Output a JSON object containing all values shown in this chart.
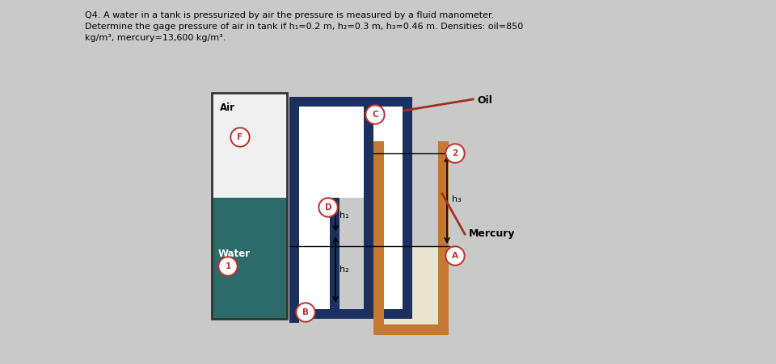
{
  "title_line1": "Q4. A water in a tank is pressurized by air the pressure is measured by a fluid manometer.",
  "title_line2": "Determine the gage pressure of air in tank if h₁=0.2 m, h₂=0.3 m, h₃=0.46 m. Densities: oil=850",
  "title_line3": "kg/m³, mercury=13,600 kg/m³.",
  "bg_color": "#c9c9c9",
  "tank_air_color": "#f0f0f0",
  "water_color": "#2d6b6b",
  "pipe_color": "#1c3060",
  "mercury_frame_color": "#c47830",
  "mercury_fill_color": "#e8e4d0",
  "label_Air": "Air",
  "label_Water": "Water",
  "label_Oil": "Oil",
  "label_Mercury": "Mercury",
  "label_F": "F",
  "label_1": "1",
  "label_C": "C",
  "label_D": "D",
  "label_B": "B",
  "label_2": "2",
  "label_A": "A",
  "label_h1": "h₁",
  "label_h2": "h₂",
  "label_h3": "h₃",
  "circle_edge": "#c03030",
  "circle_bg": "#ffffff",
  "pointer_color": "#a03020"
}
